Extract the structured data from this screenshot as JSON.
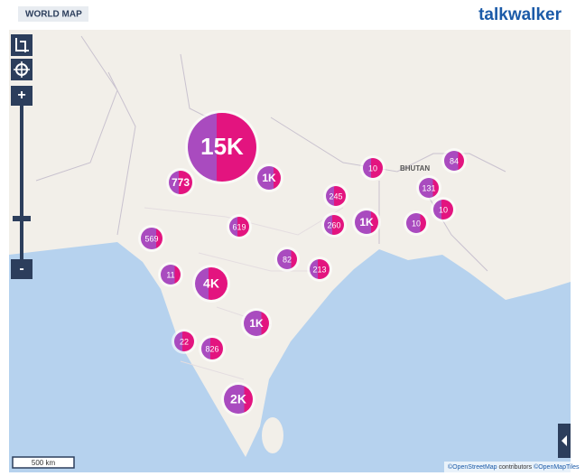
{
  "header": {
    "title": "WORLD MAP",
    "logo": "talkwalker"
  },
  "map": {
    "clusters": [
      {
        "label": "15K"
      },
      {
        "label": "1K"
      },
      {
        "label": "773"
      },
      {
        "label": "10"
      },
      {
        "label": "84"
      },
      {
        "label": "131"
      },
      {
        "label": "245"
      },
      {
        "label": "10"
      },
      {
        "label": "1K"
      },
      {
        "label": "260"
      },
      {
        "label": "10"
      },
      {
        "label": "619"
      },
      {
        "label": "569"
      },
      {
        "label": "82"
      },
      {
        "label": "213"
      },
      {
        "label": "11"
      },
      {
        "label": "4K"
      },
      {
        "label": "1K"
      },
      {
        "label": "22"
      },
      {
        "label": "826"
      },
      {
        "label": "2K"
      }
    ],
    "place_labels": [
      "BHUTAN"
    ],
    "zoom_in": "+",
    "zoom_out": "-",
    "scale": "500 km",
    "attribution": {
      "osm": "©OpenStreetMap",
      "contributors": "contributors",
      "tiles": "©OpenMapTiles"
    }
  }
}
